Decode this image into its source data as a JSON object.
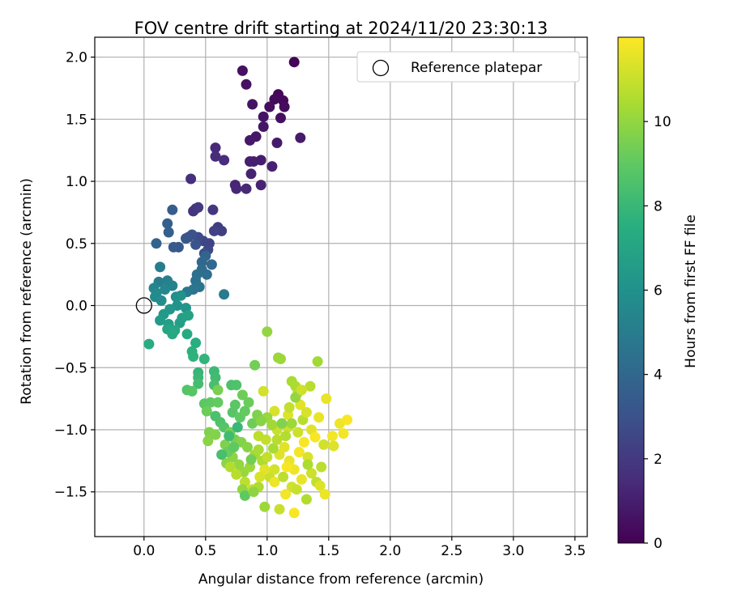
{
  "chart_data": {
    "type": "scatter",
    "title": "FOV centre drift starting at 2024/11/20 23:30:13",
    "xlabel": "Angular distance from reference (arcmin)",
    "ylabel": "Rotation from reference (arcmin)",
    "xlim": [
      -0.4,
      3.6
    ],
    "ylim": [
      -1.86,
      2.16
    ],
    "xticks": [
      0.0,
      0.5,
      1.0,
      1.5,
      2.0,
      2.5,
      3.0,
      3.5
    ],
    "xtick_labels": [
      "0.0",
      "0.5",
      "1.0",
      "1.5",
      "2.0",
      "2.5",
      "3.0",
      "3.5"
    ],
    "yticks": [
      -1.5,
      -1.0,
      -0.5,
      0.0,
      0.5,
      1.0,
      1.5,
      2.0
    ],
    "ytick_labels": [
      "−1.5",
      "−1.0",
      "−0.5",
      "0.0",
      "0.5",
      "1.0",
      "1.5",
      "2.0"
    ],
    "grid": true,
    "legend": {
      "position": "top-right",
      "entries": [
        "Reference platepar"
      ]
    },
    "colorbar": {
      "label": "Hours from first FF file",
      "colormap": "viridis",
      "range": [
        0,
        12
      ],
      "ticks": [
        0,
        2,
        4,
        6,
        8,
        10
      ],
      "tick_labels": [
        "0",
        "2",
        "4",
        "6",
        "8",
        "10"
      ]
    },
    "reference_point": {
      "x": 0.0,
      "y": 0.0,
      "label": "Reference platepar"
    },
    "points": [
      [
        1.22,
        1.96,
        0.1
      ],
      [
        1.09,
        1.7,
        0.2
      ],
      [
        1.13,
        1.65,
        0.25
      ],
      [
        1.06,
        1.66,
        0.3
      ],
      [
        1.14,
        1.6,
        0.35
      ],
      [
        1.02,
        1.6,
        0.4
      ],
      [
        1.11,
        1.51,
        0.45
      ],
      [
        0.8,
        1.89,
        0.5
      ],
      [
        0.83,
        1.78,
        0.55
      ],
      [
        0.88,
        1.62,
        0.6
      ],
      [
        0.97,
        1.52,
        0.65
      ],
      [
        0.97,
        1.44,
        0.7
      ],
      [
        0.91,
        1.36,
        0.75
      ],
      [
        0.86,
        1.33,
        0.8
      ],
      [
        1.08,
        1.31,
        0.85
      ],
      [
        1.27,
        1.35,
        0.9
      ],
      [
        0.95,
        1.17,
        0.95
      ],
      [
        0.86,
        1.16,
        1.0
      ],
      [
        0.89,
        1.16,
        1.05
      ],
      [
        1.04,
        1.12,
        1.1
      ],
      [
        0.87,
        1.06,
        1.15
      ],
      [
        0.95,
        0.97,
        1.2
      ],
      [
        0.74,
        0.97,
        1.25
      ],
      [
        0.75,
        0.94,
        1.3
      ],
      [
        0.83,
        0.94,
        1.35
      ],
      [
        0.58,
        1.27,
        1.4
      ],
      [
        0.58,
        1.2,
        1.45
      ],
      [
        0.65,
        1.17,
        1.5
      ],
      [
        0.38,
        1.02,
        1.6
      ],
      [
        0.42,
        0.78,
        1.7
      ],
      [
        0.4,
        0.76,
        1.8
      ],
      [
        0.56,
        0.77,
        1.9
      ],
      [
        0.44,
        0.79,
        2.0
      ],
      [
        0.6,
        0.63,
        2.1
      ],
      [
        0.63,
        0.6,
        2.2
      ],
      [
        0.57,
        0.6,
        2.3
      ],
      [
        0.53,
        0.5,
        2.4
      ],
      [
        0.48,
        0.52,
        2.5
      ],
      [
        0.52,
        0.45,
        2.6
      ],
      [
        0.44,
        0.55,
        2.7
      ],
      [
        0.49,
        0.42,
        2.8
      ],
      [
        0.36,
        0.55,
        2.9
      ],
      [
        0.39,
        0.57,
        3.0
      ],
      [
        0.42,
        0.49,
        3.1
      ],
      [
        0.34,
        0.54,
        3.2
      ],
      [
        0.28,
        0.47,
        3.3
      ],
      [
        0.24,
        0.47,
        3.4
      ],
      [
        0.23,
        0.77,
        3.5
      ],
      [
        0.19,
        0.66,
        3.6
      ],
      [
        0.2,
        0.59,
        3.7
      ],
      [
        0.1,
        0.5,
        3.8
      ],
      [
        0.5,
        0.4,
        3.9
      ],
      [
        0.47,
        0.35,
        4.0
      ],
      [
        0.55,
        0.33,
        4.1
      ],
      [
        0.47,
        0.29,
        4.2
      ],
      [
        0.51,
        0.25,
        4.3
      ],
      [
        0.43,
        0.25,
        4.4
      ],
      [
        0.42,
        0.2,
        4.5
      ],
      [
        0.45,
        0.15,
        4.6
      ],
      [
        0.4,
        0.13,
        4.7
      ],
      [
        0.35,
        0.11,
        4.8
      ],
      [
        0.65,
        0.09,
        4.9
      ],
      [
        0.13,
        0.31,
        5.0
      ],
      [
        0.12,
        0.19,
        5.1
      ],
      [
        0.19,
        0.2,
        5.2
      ],
      [
        0.23,
        0.16,
        5.3
      ],
      [
        0.08,
        0.14,
        5.4
      ],
      [
        0.17,
        0.13,
        5.5
      ],
      [
        0.1,
        0.1,
        5.6
      ],
      [
        0.09,
        0.07,
        5.7
      ],
      [
        0.14,
        0.04,
        5.8
      ],
      [
        0.26,
        0.07,
        5.9
      ],
      [
        0.3,
        0.08,
        6.0
      ],
      [
        0.27,
        0.0,
        6.1
      ],
      [
        0.34,
        -0.02,
        6.2
      ],
      [
        0.21,
        -0.03,
        6.3
      ],
      [
        0.16,
        -0.07,
        6.4
      ],
      [
        0.13,
        -0.12,
        6.5
      ],
      [
        0.2,
        -0.15,
        6.6
      ],
      [
        0.29,
        -0.14,
        6.7
      ],
      [
        0.31,
        -0.1,
        6.8
      ],
      [
        0.36,
        -0.08,
        6.9
      ],
      [
        0.19,
        -0.19,
        7.0
      ],
      [
        0.25,
        -0.2,
        7.1
      ],
      [
        0.23,
        -0.23,
        7.2
      ],
      [
        0.35,
        -0.23,
        7.3
      ],
      [
        0.04,
        -0.31,
        7.4
      ],
      [
        0.42,
        -0.3,
        7.5
      ],
      [
        0.39,
        -0.37,
        7.6
      ],
      [
        0.4,
        -0.41,
        7.7
      ],
      [
        0.49,
        -0.43,
        7.8
      ],
      [
        0.44,
        -0.54,
        7.9
      ],
      [
        0.44,
        -0.58,
        8.0
      ],
      [
        0.57,
        -0.53,
        8.1
      ],
      [
        0.58,
        -0.58,
        8.2
      ],
      [
        0.44,
        -0.63,
        8.3
      ],
      [
        0.57,
        -0.64,
        8.4
      ],
      [
        0.71,
        -0.64,
        8.5
      ],
      [
        0.75,
        -0.64,
        8.6
      ],
      [
        0.35,
        -0.68,
        8.7
      ],
      [
        0.39,
        -0.69,
        8.8
      ],
      [
        0.49,
        -0.79,
        8.9
      ],
      [
        0.54,
        -0.78,
        9.0
      ],
      [
        0.6,
        -0.78,
        9.1
      ],
      [
        0.51,
        -0.85,
        9.2
      ],
      [
        0.8,
        -0.72,
        9.3
      ],
      [
        0.9,
        -0.48,
        9.4
      ],
      [
        0.6,
        -0.68,
        9.5
      ],
      [
        0.53,
        -1.02,
        9.6
      ],
      [
        0.58,
        -1.04,
        9.7
      ],
      [
        0.52,
        -1.09,
        9.8
      ],
      [
        0.67,
        -1.27,
        9.9
      ],
      [
        1.0,
        -0.21,
        10.0
      ],
      [
        1.09,
        -0.42,
        10.1
      ],
      [
        1.11,
        -0.43,
        10.2
      ],
      [
        1.41,
        -0.45,
        10.3
      ],
      [
        1.2,
        -0.61,
        10.4
      ],
      [
        1.23,
        -0.65,
        10.5
      ],
      [
        1.25,
        -0.7,
        10.6
      ],
      [
        1.35,
        -0.65,
        10.7
      ],
      [
        0.93,
        -1.05,
        10.8
      ],
      [
        0.99,
        -1.08,
        10.9
      ],
      [
        1.08,
        -1.0,
        11.0
      ],
      [
        1.17,
        -0.98,
        11.1
      ],
      [
        0.97,
        -0.69,
        11.2
      ],
      [
        1.06,
        -0.85,
        11.3
      ],
      [
        1.17,
        -0.88,
        11.4
      ],
      [
        1.27,
        -0.8,
        11.5
      ],
      [
        1.48,
        -0.75,
        11.6
      ],
      [
        1.59,
        -0.95,
        11.7
      ],
      [
        1.62,
        -1.03,
        11.8
      ],
      [
        1.65,
        -0.92,
        11.9
      ],
      [
        0.62,
        -0.94,
        8.6
      ],
      [
        0.65,
        -0.98,
        8.7
      ],
      [
        0.72,
        -0.86,
        8.8
      ],
      [
        0.74,
        -0.8,
        8.9
      ],
      [
        0.78,
        -0.9,
        9.0
      ],
      [
        0.82,
        -0.85,
        9.1
      ],
      [
        0.85,
        -0.78,
        9.2
      ],
      [
        0.88,
        -0.95,
        9.3
      ],
      [
        0.7,
        -1.02,
        9.4
      ],
      [
        0.74,
        -1.08,
        9.5
      ],
      [
        0.66,
        -1.12,
        9.6
      ],
      [
        0.79,
        -1.1,
        9.7
      ],
      [
        0.84,
        -1.14,
        9.8
      ],
      [
        0.72,
        -1.22,
        9.9
      ],
      [
        0.77,
        -1.28,
        10.0
      ],
      [
        0.81,
        -1.34,
        10.1
      ],
      [
        0.86,
        -1.3,
        10.2
      ],
      [
        0.9,
        -1.2,
        10.3
      ],
      [
        0.93,
        -1.16,
        10.4
      ],
      [
        0.96,
        -1.25,
        10.5
      ],
      [
        0.7,
        -1.3,
        10.6
      ],
      [
        0.75,
        -1.36,
        10.7
      ],
      [
        0.82,
        -1.42,
        10.8
      ],
      [
        0.88,
        -1.48,
        10.9
      ],
      [
        0.8,
        -1.48,
        10.0
      ],
      [
        0.82,
        -1.53,
        9.0
      ],
      [
        0.93,
        -1.46,
        10.5
      ],
      [
        0.98,
        -1.62,
        10.2
      ],
      [
        1.02,
        -1.38,
        11.0
      ],
      [
        1.06,
        -1.32,
        11.2
      ],
      [
        1.1,
        -1.2,
        11.4
      ],
      [
        1.14,
        -1.14,
        11.5
      ],
      [
        1.18,
        -1.25,
        11.6
      ],
      [
        1.22,
        -1.32,
        11.7
      ],
      [
        1.26,
        -1.18,
        11.8
      ],
      [
        1.3,
        -1.1,
        11.9
      ],
      [
        1.33,
        -1.22,
        11.3
      ],
      [
        1.36,
        -1.35,
        11.1
      ],
      [
        1.4,
        -1.42,
        10.9
      ],
      [
        1.44,
        -1.3,
        10.8
      ],
      [
        1.28,
        -1.4,
        11.6
      ],
      [
        1.2,
        -1.46,
        11.2
      ],
      [
        1.15,
        -1.52,
        11.8
      ],
      [
        1.1,
        -1.64,
        11.0
      ],
      [
        1.22,
        -1.67,
        11.9
      ],
      [
        1.32,
        -1.56,
        10.6
      ],
      [
        1.43,
        -1.45,
        11.4
      ],
      [
        1.47,
        -1.52,
        11.7
      ],
      [
        1.0,
        -0.9,
        10.1
      ],
      [
        1.04,
        -0.96,
        10.3
      ],
      [
        0.92,
        -0.88,
        9.6
      ],
      [
        0.95,
        -0.93,
        9.8
      ],
      [
        1.15,
        -1.05,
        10.6
      ],
      [
        1.2,
        -0.95,
        10.2
      ],
      [
        1.25,
        -1.02,
        11.1
      ],
      [
        1.29,
        -0.92,
        10.7
      ],
      [
        1.32,
        -0.86,
        11.3
      ],
      [
        1.36,
        -1.0,
        11.5
      ],
      [
        1.39,
        -1.06,
        11.9
      ],
      [
        1.42,
        -0.9,
        11.6
      ],
      [
        1.46,
        -1.12,
        11.2
      ],
      [
        1.53,
        -1.05,
        11.8
      ],
      [
        1.54,
        -1.13,
        11.4
      ],
      [
        1.05,
        -1.15,
        10.4
      ],
      [
        1.0,
        -1.22,
        10.9
      ],
      [
        0.98,
        -1.32,
        11.5
      ],
      [
        1.06,
        -1.42,
        11.7
      ],
      [
        1.13,
        -1.38,
        10.8
      ],
      [
        0.89,
        -1.5,
        9.9
      ],
      [
        0.87,
        -1.24,
        9.4
      ],
      [
        0.94,
        -1.38,
        11.3
      ],
      [
        1.24,
        -1.48,
        11.0
      ],
      [
        1.33,
        -1.28,
        10.5
      ],
      [
        1.16,
        -1.3,
        11.9
      ],
      [
        1.08,
        -1.08,
        10.7
      ],
      [
        1.12,
        -0.95,
        9.7
      ],
      [
        1.18,
        -0.82,
        10.9
      ],
      [
        1.23,
        -0.74,
        10.0
      ],
      [
        1.28,
        -0.68,
        11.1
      ],
      [
        0.68,
        -1.18,
        9.2
      ],
      [
        0.73,
        -1.14,
        9.0
      ],
      [
        0.63,
        -1.2,
        8.4
      ],
      [
        0.69,
        -1.05,
        8.2
      ],
      [
        0.76,
        -0.98,
        8.0
      ],
      [
        0.58,
        -0.89,
        8.5
      ]
    ]
  }
}
